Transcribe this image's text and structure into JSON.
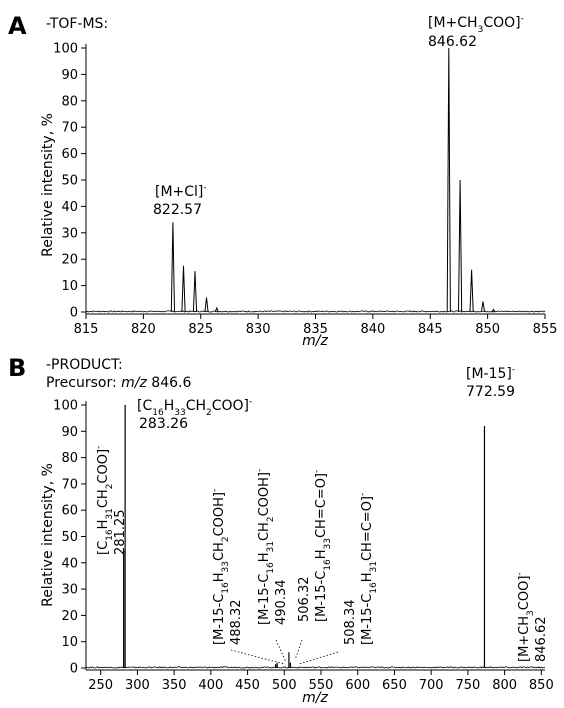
{
  "chart_data": [
    {
      "type": "line",
      "panel": "A",
      "header": "-TOF-MS:",
      "xlabel": "m/z",
      "ylabel": "Relative intensity, %",
      "xlim": [
        815,
        855
      ],
      "ylim": [
        0,
        100
      ],
      "xticks": [
        815,
        820,
        825,
        830,
        835,
        840,
        845,
        850,
        855
      ],
      "yticks": [
        0,
        10,
        20,
        30,
        40,
        50,
        60,
        70,
        80,
        90,
        100
      ],
      "peaks": [
        {
          "x": 822.57,
          "y": 34
        },
        {
          "x": 823.5,
          "y": 17.5
        },
        {
          "x": 824.5,
          "y": 15.5
        },
        {
          "x": 825.5,
          "y": 5.5
        },
        {
          "x": 826.4,
          "y": 1.5
        },
        {
          "x": 846.62,
          "y": 100
        },
        {
          "x": 847.6,
          "y": 50
        },
        {
          "x": 848.6,
          "y": 16
        },
        {
          "x": 849.6,
          "y": 4
        },
        {
          "x": 850.5,
          "y": 1
        }
      ],
      "annotations": [
        {
          "id": "a-822",
          "formula": [
            "[M+Cl]",
            "-"
          ],
          "value": "822.57"
        },
        {
          "id": "a-846",
          "formula": [
            "[M+CH",
            "3",
            "COO]",
            "-"
          ],
          "value": "846.62"
        }
      ]
    },
    {
      "type": "line",
      "panel": "B",
      "header": "-PRODUCT:",
      "precursor_label": "Precursor:",
      "precursor_mz": "m/z",
      "precursor_value": "846.6",
      "xlabel": "m/z",
      "ylabel": "Relative intensity, %",
      "xlim": [
        230,
        855
      ],
      "ylim": [
        0,
        100
      ],
      "xticks": [
        250,
        300,
        350,
        400,
        450,
        500,
        550,
        600,
        650,
        700,
        750,
        800,
        850
      ],
      "yticks": [
        0,
        10,
        20,
        30,
        40,
        50,
        60,
        70,
        80,
        90,
        100
      ],
      "peaks": [
        {
          "x": 281.25,
          "y": 45
        },
        {
          "x": 283.26,
          "y": 100
        },
        {
          "x": 488.32,
          "y": 1.5
        },
        {
          "x": 490.34,
          "y": 2
        },
        {
          "x": 506.32,
          "y": 6
        },
        {
          "x": 508.34,
          "y": 2
        },
        {
          "x": 772.59,
          "y": 92
        },
        {
          "x": 846.62,
          "y": 0.5
        }
      ],
      "annotations": [
        {
          "id": "b-283",
          "formula": [
            "[C",
            "16",
            "H",
            "33",
            "CH",
            "2",
            "COO]",
            "-"
          ],
          "value": "283.26"
        },
        {
          "id": "b-772",
          "formula": [
            "[M-15]",
            "-"
          ],
          "value": "772.59"
        },
        {
          "id": "b-281",
          "formula": [
            "[C",
            "16",
            "H",
            "31",
            "CH",
            "2",
            "COO]",
            "-"
          ],
          "value": "281.25"
        },
        {
          "id": "b-488",
          "formula": [
            "[M-15-C",
            "16",
            "H",
            "33",
            "CH",
            "2",
            "COOH]",
            "-"
          ],
          "value": "488.32"
        },
        {
          "id": "b-490",
          "formula": [
            "[M-15-C",
            "16",
            "H",
            "31",
            "CH",
            "2",
            "COOH]",
            "-"
          ],
          "value": "490.34"
        },
        {
          "id": "b-506",
          "formula": [
            "[M-15-C",
            "16",
            "H",
            "33",
            "CH=C=O]",
            "-"
          ],
          "value": "506.32"
        },
        {
          "id": "b-508",
          "formula": [
            "[M-15-C",
            "16",
            "H",
            "31",
            "CH=C=O]",
            "-"
          ],
          "value": "508.34"
        },
        {
          "id": "b-846",
          "formula": [
            "[M+CH",
            "3",
            "COO]",
            "-"
          ],
          "value": "846.62"
        }
      ]
    }
  ]
}
